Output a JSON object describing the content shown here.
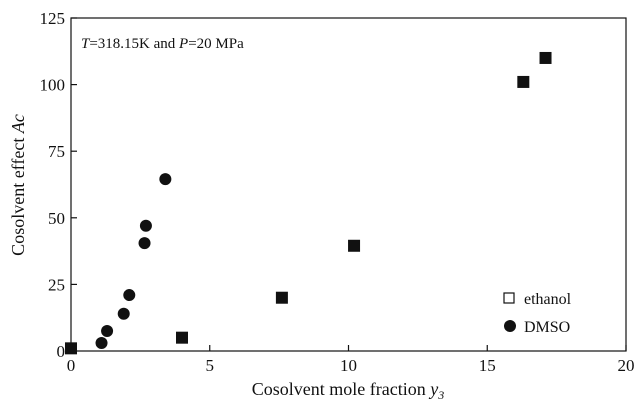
{
  "chart_data": {
    "type": "scatter",
    "annotation": {
      "prefix_var": "T",
      "prefix_rest": "=318.15K and ",
      "p_var": "P",
      "p_rest": "=20 MPa"
    },
    "xlabel": "Cosolvent mole fraction",
    "xlabel_var": "y",
    "xlabel_sub": "3",
    "ylabel": "Cosolvent effect",
    "ylabel_var": "Ac",
    "xlim": [
      0,
      20
    ],
    "ylim": [
      0,
      125
    ],
    "x_ticks": [
      "0",
      "5",
      "10",
      "15",
      "20"
    ],
    "y_ticks": [
      "0",
      "25",
      "50",
      "75",
      "100",
      "125"
    ],
    "legend_position": "bottom-right",
    "series": [
      {
        "name": "ethanol",
        "marker": "square",
        "color": "#111111",
        "points": [
          {
            "x": 0.0,
            "y": 1
          },
          {
            "x": 4.0,
            "y": 5
          },
          {
            "x": 7.6,
            "y": 20
          },
          {
            "x": 10.2,
            "y": 39.5
          },
          {
            "x": 16.3,
            "y": 101
          },
          {
            "x": 17.1,
            "y": 110
          }
        ]
      },
      {
        "name": "DMSO",
        "marker": "circle",
        "color": "#111111",
        "points": [
          {
            "x": 1.1,
            "y": 3
          },
          {
            "x": 1.3,
            "y": 7.5
          },
          {
            "x": 1.9,
            "y": 14
          },
          {
            "x": 2.1,
            "y": 21
          },
          {
            "x": 2.65,
            "y": 40.5
          },
          {
            "x": 2.7,
            "y": 47
          },
          {
            "x": 3.4,
            "y": 64.5
          }
        ]
      }
    ]
  }
}
